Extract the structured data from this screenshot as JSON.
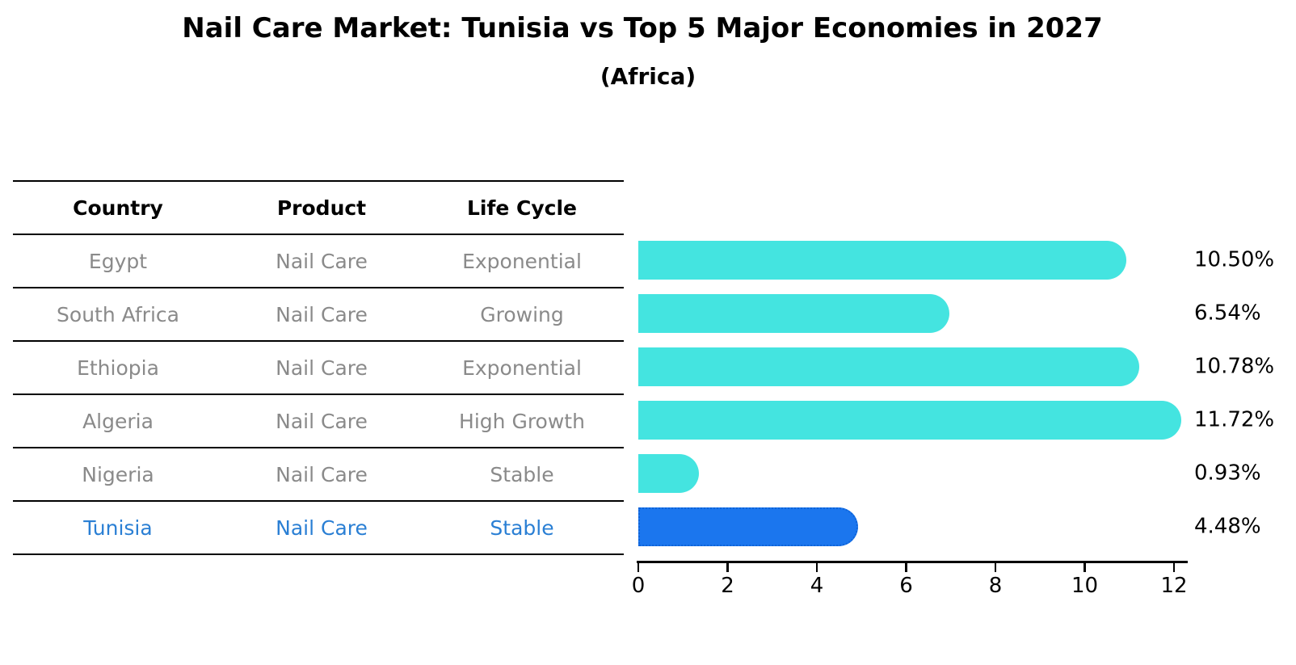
{
  "title": "Nail Care Market: Tunisia vs Top 5 Major Economies in 2027",
  "subtitle": "(Africa)",
  "colors": {
    "bar": "#44e4e0",
    "highlight_bar": "#1b76ee",
    "highlight_border": "#0e63d8",
    "highlight_text": "#2a7fd4",
    "row_text": "#8a8a8a",
    "header_text": "#000000",
    "axis": "#000000"
  },
  "table": {
    "headers": [
      "Country",
      "Product",
      "Life Cycle"
    ],
    "rows": [
      {
        "country": "Egypt",
        "product": "Nail Care",
        "life_cycle": "Exponential",
        "highlight": false
      },
      {
        "country": "South Africa",
        "product": "Nail Care",
        "life_cycle": "Growing",
        "highlight": false
      },
      {
        "country": "Ethiopia",
        "product": "Nail Care",
        "life_cycle": "Exponential",
        "highlight": false
      },
      {
        "country": "Algeria",
        "product": "Nail Care",
        "life_cycle": "High Growth",
        "highlight": false
      },
      {
        "country": "Nigeria",
        "product": "Nail Care",
        "life_cycle": "Stable",
        "highlight": false
      },
      {
        "country": "Tunisia",
        "product": "Nail Care",
        "life_cycle": "Stable",
        "highlight": true
      }
    ]
  },
  "chart_data": {
    "type": "bar",
    "orientation": "horizontal",
    "title": "Nail Care Market: Tunisia vs Top 5 Major Economies in 2027 (Africa)",
    "categories": [
      "Egypt",
      "South Africa",
      "Ethiopia",
      "Algeria",
      "Nigeria",
      "Tunisia"
    ],
    "values": [
      10.5,
      6.54,
      10.78,
      11.72,
      0.93,
      4.48
    ],
    "labels": [
      "10.50%",
      "6.54%",
      "10.78%",
      "11.72%",
      "0.93%",
      "4.48%"
    ],
    "highlight_index": 5,
    "xlabel": "",
    "ylabel": "",
    "xlim": [
      0,
      12
    ],
    "xticks": [
      0,
      2,
      4,
      6,
      8,
      10,
      12
    ],
    "grid": false,
    "legend": "none"
  }
}
